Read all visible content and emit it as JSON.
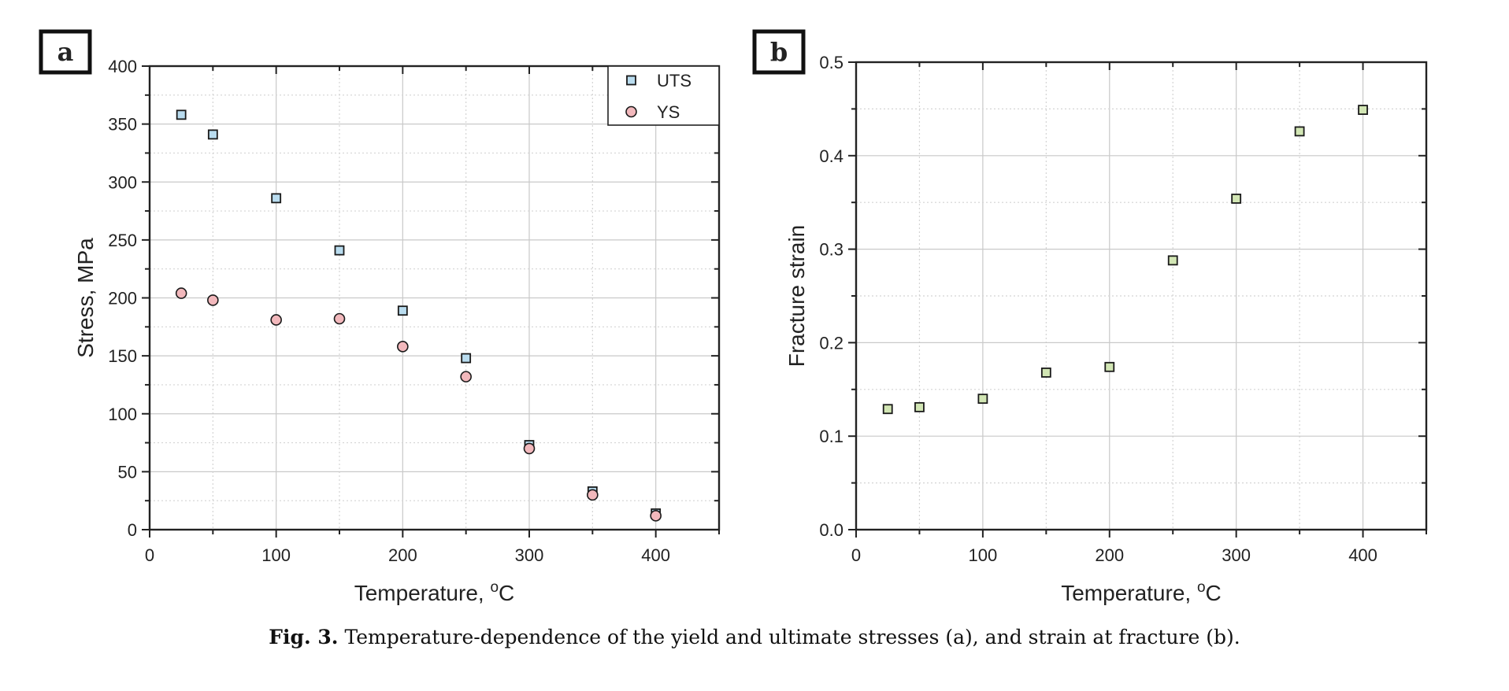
{
  "chart_data": [
    {
      "type": "scatter",
      "panel_label": "a",
      "xlabel": "Temperature, °C",
      "ylabel": "Stress, MPa",
      "xlim": [
        0,
        450
      ],
      "ylim": [
        0,
        400
      ],
      "xticks": [
        "0",
        "100",
        "200",
        "300",
        "400"
      ],
      "yticks": [
        "0",
        "50",
        "100",
        "150",
        "200",
        "250",
        "300",
        "350",
        "400"
      ],
      "grid": true,
      "legend_position": "top-right",
      "series": [
        {
          "name": "UTS",
          "marker": "square",
          "color": "#b9dcef",
          "x": [
            25,
            50,
            100,
            150,
            200,
            250,
            300,
            350,
            400
          ],
          "y": [
            358,
            341,
            286,
            241,
            189,
            148,
            73,
            33,
            14
          ]
        },
        {
          "name": "YS",
          "marker": "circle",
          "color": "#f2b8bc",
          "x": [
            25,
            50,
            100,
            150,
            200,
            250,
            300,
            350,
            400
          ],
          "y": [
            204,
            198,
            181,
            182,
            158,
            132,
            70,
            30,
            12
          ]
        }
      ]
    },
    {
      "type": "scatter",
      "panel_label": "b",
      "xlabel": "Temperature, °C",
      "ylabel": "Fracture strain",
      "xlim": [
        0,
        450
      ],
      "ylim": [
        0,
        0.5
      ],
      "xticks": [
        "0",
        "100",
        "200",
        "300",
        "400"
      ],
      "yticks": [
        "0.0",
        "0.1",
        "0.2",
        "0.3",
        "0.4",
        "0.5"
      ],
      "grid": true,
      "series": [
        {
          "marker": "square",
          "color": "#d2e6b4",
          "x": [
            25,
            50,
            100,
            150,
            200,
            250,
            300,
            350,
            400
          ],
          "y": [
            0.129,
            0.131,
            0.14,
            0.168,
            0.174,
            0.288,
            0.354,
            0.426,
            0.449
          ]
        }
      ]
    }
  ],
  "caption": {
    "label": "Fig. 3.",
    "text": " Temperature-dependence of the yield and ultimate stresses (a), and strain at fracture (b)."
  }
}
